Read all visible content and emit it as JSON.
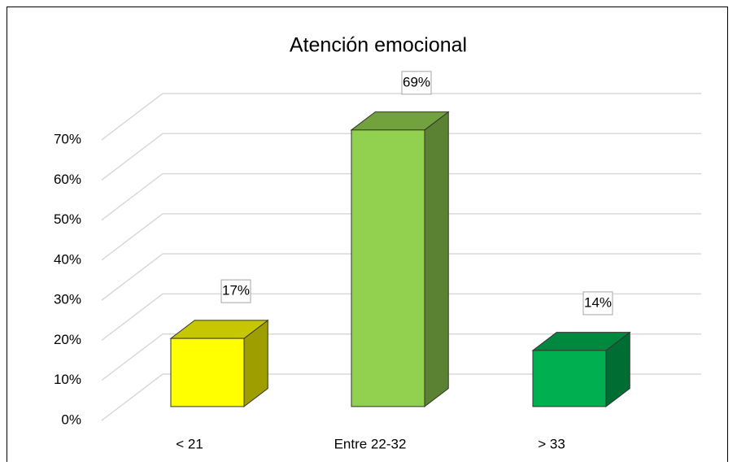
{
  "chart_data": {
    "type": "bar3d",
    "title": "Atención emocional",
    "categories": [
      "< 21",
      "Entre 22-32",
      "> 33"
    ],
    "values": [
      17,
      69,
      14
    ],
    "value_labels": [
      "17%",
      "69%",
      "14%"
    ],
    "colors": [
      "#ffff00",
      "#92d050",
      "#00b050"
    ],
    "ylim": [
      0,
      70
    ],
    "yticks": [
      {
        "value": 0,
        "label": "0%"
      },
      {
        "value": 10,
        "label": "10%"
      },
      {
        "value": 20,
        "label": "20%"
      },
      {
        "value": 30,
        "label": "30%"
      },
      {
        "value": 40,
        "label": "40%"
      },
      {
        "value": 50,
        "label": "50%"
      },
      {
        "value": 60,
        "label": "60%"
      },
      {
        "value": 70,
        "label": "70%"
      }
    ],
    "grid": true
  }
}
